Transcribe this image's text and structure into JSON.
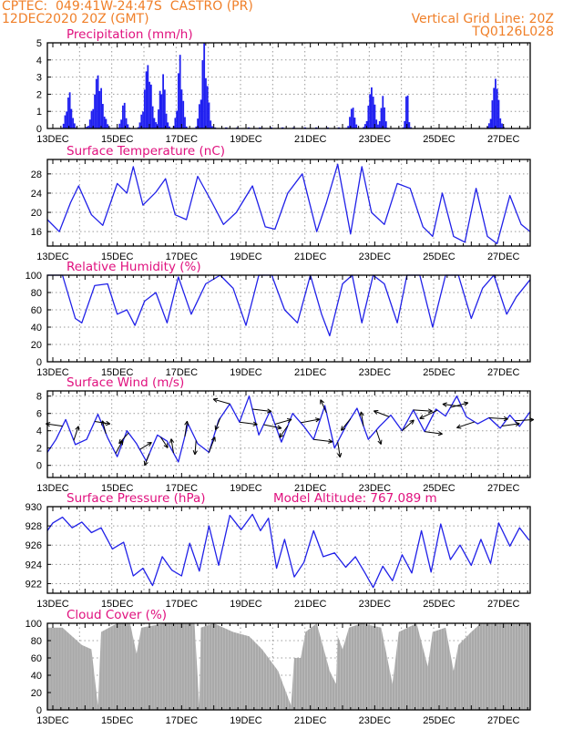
{
  "header": {
    "line1": "CPTEC:  049:41W-24:47S  CASTRO (PR)",
    "line2": "12DEC2020 20Z (GMT)",
    "right1": "Vertical Grid Line: 20Z",
    "right2": "TQ0126L028"
  },
  "colors": {
    "header": "#f07f28",
    "title": "#e0107e",
    "line": "#2020e8",
    "bar": "#2020f0",
    "cloud": "#a9a9a9",
    "grid": "#9a9a9a"
  },
  "chart_data": [
    {
      "type": "bar",
      "title": "Precipitation (mm/h)",
      "x_ticks": [
        "13DEC",
        "15DEC",
        "17DEC",
        "19DEC",
        "21DEC",
        "23DEC",
        "25DEC",
        "27DEC"
      ],
      "ylim": [
        0,
        5
      ],
      "y_ticks": [
        "0",
        "1",
        "2",
        "3",
        "4",
        "5"
      ],
      "events": [
        {
          "day": 13.5,
          "width": 0.22,
          "peak": 2.2
        },
        {
          "day": 14.4,
          "width": 0.35,
          "peak": 3.1
        },
        {
          "day": 15.2,
          "width": 0.18,
          "peak": 1.6
        },
        {
          "day": 15.95,
          "width": 0.3,
          "peak": 3.7
        },
        {
          "day": 16.4,
          "width": 0.22,
          "peak": 3.3
        },
        {
          "day": 16.95,
          "width": 0.2,
          "peak": 4.3
        },
        {
          "day": 17.7,
          "width": 0.25,
          "peak": 5.0
        },
        {
          "day": 22.3,
          "width": 0.18,
          "peak": 1.3
        },
        {
          "day": 22.9,
          "width": 0.25,
          "peak": 2.4
        },
        {
          "day": 23.25,
          "width": 0.15,
          "peak": 1.9
        },
        {
          "day": 24.0,
          "width": 0.12,
          "peak": 2.2
        },
        {
          "day": 26.75,
          "width": 0.25,
          "peak": 2.9
        }
      ]
    },
    {
      "type": "line",
      "title": "Surface Temperature (nC)",
      "x_ticks": [
        "13DEC",
        "15DEC",
        "17DEC",
        "19DEC",
        "21DEC",
        "23DEC",
        "25DEC",
        "27DEC"
      ],
      "ylim": [
        13,
        31
      ],
      "y_ticks": [
        "16",
        "20",
        "24",
        "28"
      ],
      "y_tick_values": [
        16,
        20,
        24,
        28
      ],
      "points": [
        [
          12.83,
          18.5
        ],
        [
          13.2,
          16
        ],
        [
          13.55,
          22
        ],
        [
          13.8,
          25.5
        ],
        [
          14.2,
          19.5
        ],
        [
          14.55,
          17.3
        ],
        [
          15,
          26
        ],
        [
          15.3,
          24
        ],
        [
          15.5,
          29.5
        ],
        [
          15.8,
          21.5
        ],
        [
          16.2,
          24.2
        ],
        [
          16.5,
          27
        ],
        [
          16.8,
          19.5
        ],
        [
          17.15,
          18.5
        ],
        [
          17.5,
          27.5
        ],
        [
          17.95,
          22
        ],
        [
          18.3,
          17.5
        ],
        [
          18.7,
          20
        ],
        [
          19.2,
          25.5
        ],
        [
          19.6,
          17
        ],
        [
          19.9,
          16.5
        ],
        [
          20.3,
          24
        ],
        [
          20.75,
          28
        ],
        [
          21.2,
          16
        ],
        [
          21.5,
          22
        ],
        [
          21.85,
          30
        ],
        [
          22.25,
          15.5
        ],
        [
          22.6,
          29.5
        ],
        [
          22.9,
          20
        ],
        [
          23.3,
          17.5
        ],
        [
          23.7,
          26
        ],
        [
          24.1,
          25
        ],
        [
          24.5,
          17
        ],
        [
          24.8,
          15
        ],
        [
          25.1,
          24
        ],
        [
          25.45,
          15
        ],
        [
          25.8,
          13.8
        ],
        [
          26.15,
          25
        ],
        [
          26.5,
          15
        ],
        [
          26.8,
          13.5
        ],
        [
          27.2,
          23.5
        ],
        [
          27.55,
          17.5
        ],
        [
          27.83,
          16
        ]
      ]
    },
    {
      "type": "line",
      "title": "Relative Humidity (%)",
      "x_ticks": [
        "13DEC",
        "15DEC",
        "17DEC",
        "19DEC",
        "21DEC",
        "23DEC",
        "25DEC",
        "27DEC"
      ],
      "ylim": [
        0,
        100
      ],
      "y_ticks": [
        "0",
        "20",
        "40",
        "60",
        "80",
        "100"
      ],
      "y_tick_values": [
        0,
        20,
        40,
        60,
        80,
        100
      ],
      "points": [
        [
          12.83,
          100
        ],
        [
          13.3,
          100
        ],
        [
          13.7,
          50
        ],
        [
          13.9,
          45
        ],
        [
          14.3,
          88
        ],
        [
          14.7,
          90
        ],
        [
          15.0,
          55
        ],
        [
          15.3,
          60
        ],
        [
          15.55,
          42
        ],
        [
          15.85,
          70
        ],
        [
          16.2,
          80
        ],
        [
          16.55,
          45
        ],
        [
          16.9,
          98
        ],
        [
          17.3,
          55
        ],
        [
          17.75,
          90
        ],
        [
          18.2,
          100
        ],
        [
          18.6,
          85
        ],
        [
          19.0,
          42
        ],
        [
          19.4,
          100
        ],
        [
          19.8,
          100
        ],
        [
          20.2,
          60
        ],
        [
          20.6,
          45
        ],
        [
          21.0,
          100
        ],
        [
          21.35,
          55
        ],
        [
          21.6,
          30
        ],
        [
          22.0,
          90
        ],
        [
          22.3,
          100
        ],
        [
          22.6,
          45
        ],
        [
          22.95,
          100
        ],
        [
          23.3,
          90
        ],
        [
          23.7,
          45
        ],
        [
          24.0,
          100
        ],
        [
          24.4,
          100
        ],
        [
          24.8,
          40
        ],
        [
          25.2,
          100
        ],
        [
          25.6,
          100
        ],
        [
          26.0,
          50
        ],
        [
          26.35,
          85
        ],
        [
          26.7,
          100
        ],
        [
          27.1,
          55
        ],
        [
          27.4,
          75
        ],
        [
          27.83,
          95
        ]
      ]
    },
    {
      "type": "line",
      "title": "Surface Wind (m/s)",
      "x_ticks": [
        "13DEC",
        "15DEC",
        "17DEC",
        "19DEC",
        "21DEC",
        "23DEC",
        "25DEC",
        "27DEC"
      ],
      "ylim": [
        -1.4,
        8.6
      ],
      "y_ticks": [
        "0",
        "2",
        "4",
        "6",
        "8"
      ],
      "y_tick_values": [
        0,
        2,
        4,
        6,
        8
      ],
      "points": [
        [
          12.83,
          1.5
        ],
        [
          13.1,
          3.0
        ],
        [
          13.4,
          5.3
        ],
        [
          13.7,
          2.4
        ],
        [
          14.05,
          3.0
        ],
        [
          14.4,
          5.9
        ],
        [
          14.7,
          3.2
        ],
        [
          15.0,
          1.0
        ],
        [
          15.3,
          4.0
        ],
        [
          15.6,
          2.5
        ],
        [
          15.9,
          0.5
        ],
        [
          16.25,
          3.5
        ],
        [
          16.55,
          2.8
        ],
        [
          16.9,
          0.4
        ],
        [
          17.2,
          4.8
        ],
        [
          17.5,
          2.5
        ],
        [
          17.85,
          1.5
        ],
        [
          18.15,
          5.2
        ],
        [
          18.5,
          7.1
        ],
        [
          18.8,
          5.0
        ],
        [
          19.1,
          8.0
        ],
        [
          19.4,
          3.5
        ],
        [
          19.75,
          6.3
        ],
        [
          20.1,
          2.7
        ],
        [
          20.45,
          6.0
        ],
        [
          20.8,
          4.5
        ],
        [
          21.1,
          3.0
        ],
        [
          21.45,
          6.9
        ],
        [
          21.75,
          2.0
        ],
        [
          22.1,
          4.5
        ],
        [
          22.45,
          6.6
        ],
        [
          22.8,
          3.0
        ],
        [
          23.15,
          4.5
        ],
        [
          23.5,
          5.8
        ],
        [
          23.85,
          4.0
        ],
        [
          24.2,
          6.4
        ],
        [
          24.55,
          3.9
        ],
        [
          24.9,
          6.5
        ],
        [
          25.2,
          5.7
        ],
        [
          25.55,
          8.0
        ],
        [
          25.85,
          5.6
        ],
        [
          26.2,
          4.8
        ],
        [
          26.55,
          5.5
        ],
        [
          26.9,
          4.3
        ],
        [
          27.2,
          5.8
        ],
        [
          27.5,
          4.5
        ],
        [
          27.83,
          6.2
        ]
      ],
      "vectors": [
        [
          13.3,
          -1.4,
          0.2
        ],
        [
          13.65,
          0.4,
          1.2
        ],
        [
          14.3,
          1.3,
          -0.2
        ],
        [
          14.65,
          -0.3,
          1.1
        ],
        [
          14.95,
          0.6,
          1.1
        ],
        [
          15.35,
          -0.8,
          -0.9
        ],
        [
          15.7,
          1.0,
          0.6
        ],
        [
          16.0,
          -0.4,
          -1.0
        ],
        [
          16.35,
          0.6,
          -0.9
        ],
        [
          16.75,
          -0.2,
          1.2
        ],
        [
          17.1,
          0.2,
          1.3
        ],
        [
          17.45,
          -0.1,
          -1.2
        ],
        [
          17.85,
          0.5,
          1.3
        ],
        [
          18.2,
          -0.4,
          -1.0
        ],
        [
          18.5,
          -1.4,
          0.4
        ],
        [
          18.8,
          1.5,
          -0.2
        ],
        [
          19.2,
          1.6,
          -0.2
        ],
        [
          19.55,
          1.5,
          -0.3
        ],
        [
          19.9,
          1.4,
          0.4
        ],
        [
          20.3,
          -0.7,
          -1.0
        ],
        [
          20.7,
          1.6,
          0.3
        ],
        [
          21.1,
          1.6,
          -0.2
        ],
        [
          21.5,
          -0.5,
          1.1
        ],
        [
          21.85,
          0.2,
          -1.3
        ],
        [
          22.25,
          -0.8,
          -1.0
        ],
        [
          22.65,
          -0.2,
          1.2
        ],
        [
          23.05,
          0.4,
          -1.2
        ],
        [
          23.45,
          -1.3,
          0.5
        ],
        [
          23.85,
          1.0,
          0.9
        ],
        [
          24.2,
          1.6,
          -0.1
        ],
        [
          24.55,
          1.5,
          -0.2
        ],
        [
          24.95,
          -1.5,
          -0.7
        ],
        [
          25.35,
          1.5,
          0.4
        ],
        [
          25.7,
          -1.6,
          0.2
        ],
        [
          26.1,
          -1.5,
          -0.5
        ],
        [
          26.55,
          1.6,
          -0.1
        ],
        [
          26.95,
          1.5,
          0.2
        ],
        [
          27.35,
          1.6,
          0.1
        ]
      ]
    },
    {
      "type": "line",
      "title": "Surface Pressure (hPa)",
      "annotation": "Model Altitude: 767.089 m",
      "x_ticks": [
        "13DEC",
        "15DEC",
        "17DEC",
        "19DEC",
        "21DEC",
        "23DEC",
        "25DEC",
        "27DEC"
      ],
      "ylim": [
        921,
        930
      ],
      "y_ticks": [
        "922",
        "924",
        "926",
        "928",
        "930"
      ],
      "y_tick_values": [
        922,
        924,
        926,
        928,
        930
      ],
      "points": [
        [
          12.83,
          927.5
        ],
        [
          13.0,
          928.3
        ],
        [
          13.3,
          928.9
        ],
        [
          13.6,
          927.8
        ],
        [
          13.9,
          928.4
        ],
        [
          14.2,
          927.3
        ],
        [
          14.5,
          927.8
        ],
        [
          14.85,
          925.6
        ],
        [
          15.2,
          926.3
        ],
        [
          15.5,
          922.8
        ],
        [
          15.8,
          923.6
        ],
        [
          16.1,
          921.8
        ],
        [
          16.4,
          924.8
        ],
        [
          16.7,
          923.4
        ],
        [
          17.0,
          922.8
        ],
        [
          17.25,
          926.2
        ],
        [
          17.55,
          923.3
        ],
        [
          17.85,
          928.0
        ],
        [
          18.15,
          923.9
        ],
        [
          18.5,
          929.1
        ],
        [
          18.85,
          927.6
        ],
        [
          19.2,
          929.2
        ],
        [
          19.45,
          927.5
        ],
        [
          19.7,
          928.8
        ],
        [
          19.95,
          923.6
        ],
        [
          20.2,
          926.6
        ],
        [
          20.5,
          922.7
        ],
        [
          20.8,
          924.2
        ],
        [
          21.1,
          927.5
        ],
        [
          21.4,
          924.8
        ],
        [
          21.75,
          925.2
        ],
        [
          22.1,
          923.7
        ],
        [
          22.4,
          924.8
        ],
        [
          22.7,
          923.1
        ],
        [
          22.95,
          921.6
        ],
        [
          23.25,
          923.8
        ],
        [
          23.55,
          922.3
        ],
        [
          23.85,
          925.0
        ],
        [
          24.15,
          923.1
        ],
        [
          24.45,
          927.5
        ],
        [
          24.75,
          923.2
        ],
        [
          25.05,
          928.2
        ],
        [
          25.35,
          924.5
        ],
        [
          25.65,
          926.0
        ],
        [
          26.0,
          923.9
        ],
        [
          26.3,
          926.6
        ],
        [
          26.6,
          924.1
        ],
        [
          26.85,
          928.3
        ],
        [
          27.2,
          925.9
        ],
        [
          27.5,
          927.8
        ],
        [
          27.8,
          926.5
        ]
      ]
    },
    {
      "type": "area",
      "title": "Cloud Cover (%)",
      "x_ticks": [
        "13DEC",
        "15DEC",
        "17DEC",
        "19DEC",
        "21DEC",
        "23DEC",
        "25DEC",
        "27DEC"
      ],
      "ylim": [
        0,
        100
      ],
      "y_ticks": [
        "0",
        "20",
        "40",
        "60",
        "80",
        "100"
      ],
      "y_tick_values": [
        0,
        20,
        40,
        60,
        80,
        100
      ],
      "points": [
        [
          12.83,
          95
        ],
        [
          13.3,
          95
        ],
        [
          13.6,
          85
        ],
        [
          13.9,
          75
        ],
        [
          14.2,
          70
        ],
        [
          14.4,
          5
        ],
        [
          14.5,
          90
        ],
        [
          15.0,
          100
        ],
        [
          15.4,
          100
        ],
        [
          15.6,
          65
        ],
        [
          15.75,
          95
        ],
        [
          16.5,
          100
        ],
        [
          17.0,
          100
        ],
        [
          17.4,
          100
        ],
        [
          17.55,
          5
        ],
        [
          17.6,
          95
        ],
        [
          18.0,
          100
        ],
        [
          18.6,
          90
        ],
        [
          19.1,
          85
        ],
        [
          19.5,
          70
        ],
        [
          20.0,
          45
        ],
        [
          20.4,
          5
        ],
        [
          20.5,
          60
        ],
        [
          20.7,
          60
        ],
        [
          20.85,
          90
        ],
        [
          21.2,
          100
        ],
        [
          21.6,
          45
        ],
        [
          21.8,
          30
        ],
        [
          21.85,
          85
        ],
        [
          22.0,
          70
        ],
        [
          22.2,
          95
        ],
        [
          22.6,
          100
        ],
        [
          23.2,
          95
        ],
        [
          23.55,
          30
        ],
        [
          23.75,
          90
        ],
        [
          24.3,
          100
        ],
        [
          24.65,
          50
        ],
        [
          24.8,
          90
        ],
        [
          25.2,
          95
        ],
        [
          25.45,
          45
        ],
        [
          25.6,
          75
        ],
        [
          26.0,
          90
        ],
        [
          26.3,
          100
        ],
        [
          27.1,
          100
        ],
        [
          27.5,
          100
        ],
        [
          27.83,
          100
        ]
      ]
    }
  ]
}
